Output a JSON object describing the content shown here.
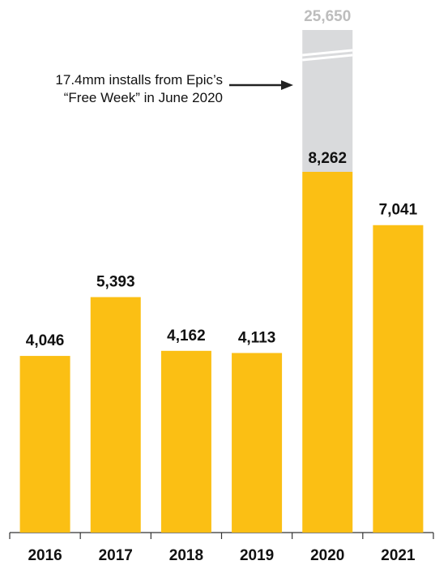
{
  "chart_data": {
    "type": "bar",
    "categories": [
      "2016",
      "2017",
      "2018",
      "2019",
      "2020",
      "2021"
    ],
    "values": [
      4046,
      5393,
      4162,
      4113,
      8262,
      7041
    ],
    "value_labels": [
      "4,046",
      "5,393",
      "4,162",
      "4,113",
      "8,262",
      "7,041"
    ],
    "extra_segment": {
      "category": "2020",
      "total": 25650,
      "total_label": "25,650",
      "axis_break": true
    },
    "annotation": {
      "lines": [
        "17.4mm installs from Epic’s",
        "“Free Week” in June 2020"
      ],
      "points_to": "2020"
    },
    "title": "",
    "xlabel": "",
    "ylabel": "",
    "ylim": [
      0,
      8800
    ],
    "grid": false,
    "legend": "none",
    "colors": {
      "bar": "#fbbf14",
      "extra_segment": "#d9dadc",
      "total_label": "#bdbdbd",
      "text": "#111111",
      "axis": "#333333"
    }
  }
}
